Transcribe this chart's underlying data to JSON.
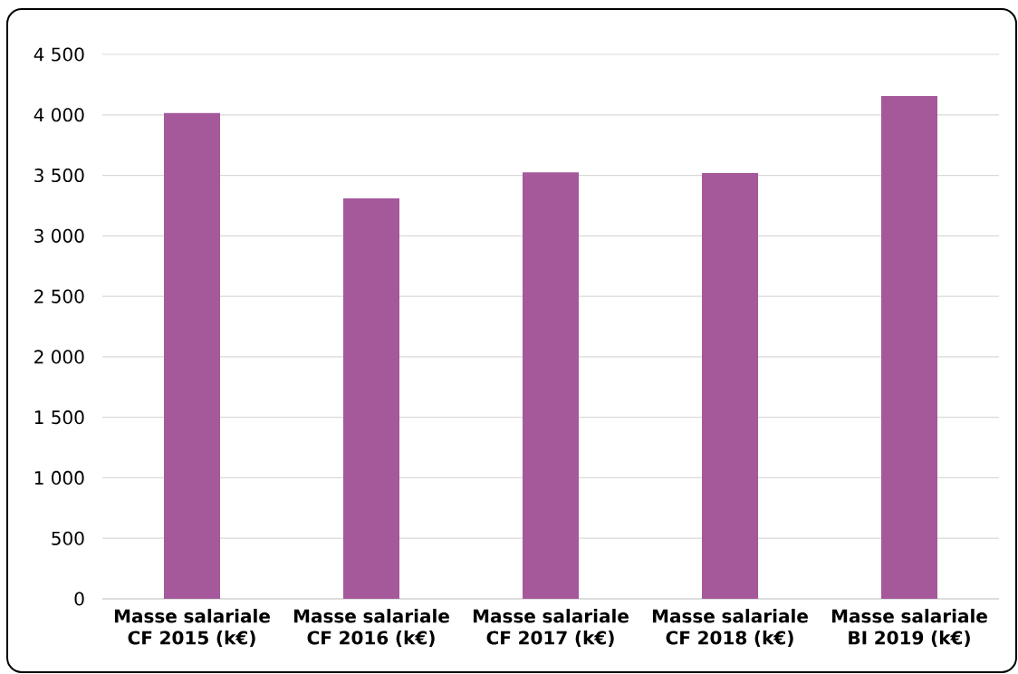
{
  "chart_data": {
    "type": "bar",
    "categories": [
      "Masse salariale CF 2015 (k€)",
      "Masse salariale CF 2016 (k€)",
      "Masse salariale CF 2017 (k€)",
      "Masse salariale CF 2018 (k€)",
      "Masse salariale BI 2019 (k€)"
    ],
    "values": [
      4015,
      3310,
      3525,
      3520,
      4155
    ],
    "color": "#a5589a",
    "ylim": [
      0,
      4500
    ],
    "yticks": [
      0,
      500,
      {
        "value": 1000,
        "label": "1 000"
      },
      {
        "value": 1500,
        "label": "1 500"
      },
      {
        "value": 2000,
        "label": "2 000"
      },
      {
        "value": 2500,
        "label": "2 500"
      },
      {
        "value": 3000,
        "label": "3 000"
      },
      {
        "value": 3500,
        "label": "3 500"
      },
      {
        "value": 4000,
        "label": "4 000"
      },
      {
        "value": 4500,
        "label": "4 500"
      }
    ],
    "grid": "y"
  }
}
